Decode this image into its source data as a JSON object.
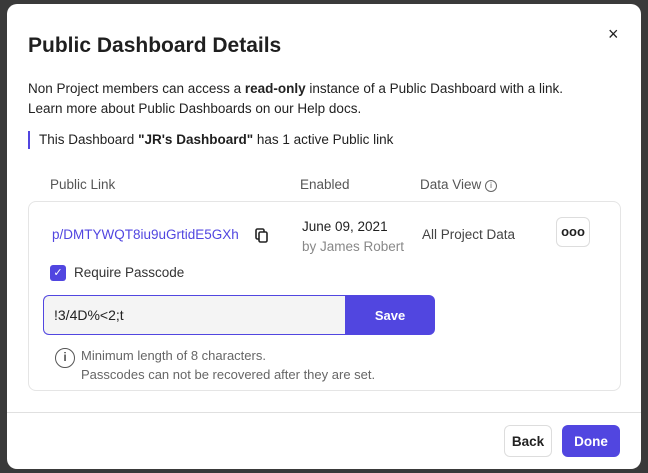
{
  "modal": {
    "title": "Public Dashboard Details",
    "close_icon": "×",
    "desc_pre": "Non Project members can access a ",
    "desc_bold": "read-only",
    "desc_post": " instance of a Public Dashboard with a link.",
    "desc_line2": "Learn more about Public Dashboards on our Help docs.",
    "note_pre": "This Dashboard ",
    "note_bold": "\"JR's Dashboard\"",
    "note_post": " has 1 active Public link"
  },
  "table": {
    "headers": [
      "Public Link",
      "Enabled",
      "Data View"
    ],
    "row": {
      "link": "p/DMTYWQT8iu9uGrtidE5GXh",
      "date": "June 09, 2021",
      "by": "by James Robert",
      "data_view": "All Project Data",
      "more": "ooo"
    }
  },
  "passcode": {
    "checkbox_label": "Require Passcode",
    "checked": true,
    "value": "!3/4D%<2;t",
    "save": "Save",
    "help1": "Minimum length of 8 characters.",
    "help2": "Passcodes can not be recovered after they are set."
  },
  "footer": {
    "back": "Back",
    "done": "Done"
  },
  "colors": {
    "accent": "#5146e0"
  }
}
